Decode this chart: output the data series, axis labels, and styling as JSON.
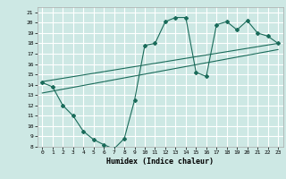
{
  "background_color": "#cde8e4",
  "grid_color": "#ffffff",
  "line_color": "#1a6b5a",
  "xlabel": "Humidex (Indice chaleur)",
  "xlim": [
    -0.5,
    23.5
  ],
  "ylim": [
    8,
    21.5
  ],
  "xticks": [
    0,
    1,
    2,
    3,
    4,
    5,
    6,
    7,
    8,
    9,
    10,
    11,
    12,
    13,
    14,
    15,
    16,
    17,
    18,
    19,
    20,
    21,
    22,
    23
  ],
  "yticks": [
    8,
    9,
    10,
    11,
    12,
    13,
    14,
    15,
    16,
    17,
    18,
    19,
    20,
    21
  ],
  "line1_x": [
    0,
    1,
    2,
    3,
    4,
    5,
    6,
    7,
    8,
    9,
    10,
    11,
    12,
    13,
    14,
    15,
    16,
    17,
    18,
    19,
    20,
    21,
    22,
    23
  ],
  "line1_y": [
    14.2,
    13.8,
    12.0,
    11.0,
    9.5,
    8.7,
    8.2,
    7.8,
    8.8,
    12.5,
    17.8,
    18.0,
    20.1,
    20.5,
    20.5,
    15.2,
    14.8,
    19.8,
    20.1,
    19.3,
    20.2,
    19.0,
    18.7,
    18.0
  ],
  "line2_x": [
    0,
    23
  ],
  "line2_y": [
    13.2,
    17.4
  ],
  "line3_x": [
    0,
    23
  ],
  "line3_y": [
    14.3,
    18.0
  ]
}
